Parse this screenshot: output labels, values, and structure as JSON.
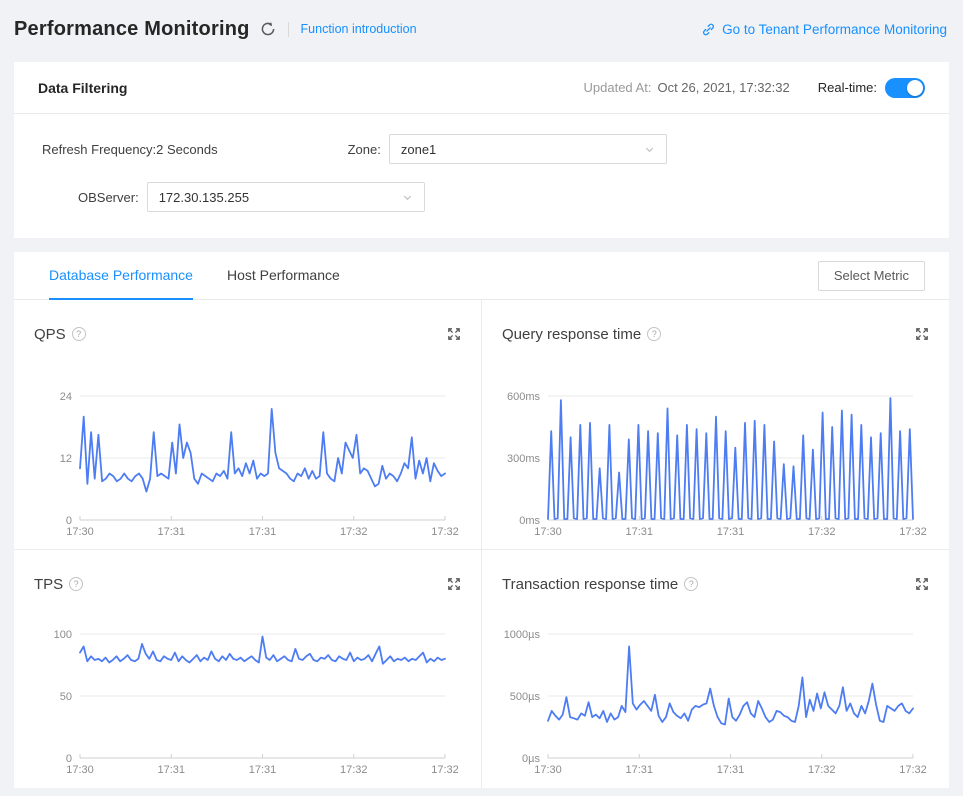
{
  "header": {
    "title": "Performance Monitoring",
    "function_intro": "Function introduction",
    "tenant_link": "Go to Tenant Performance Monitoring"
  },
  "filter_card": {
    "title": "Data Filtering",
    "updated_label": "Updated At:",
    "updated_value": "Oct 26, 2021, 17:32:32",
    "realtime_label": "Real-time:",
    "realtime_on": true,
    "refresh_label": "Refresh Frequency:",
    "refresh_value": "2 Seconds",
    "zone_label": "Zone:",
    "zone_value": "zone1",
    "observer_label": "OBServer:",
    "observer_value": "172.30.135.255"
  },
  "tabs": {
    "database": "Database Performance",
    "host": "Host Performance",
    "select_metric": "Select Metric"
  },
  "icons": {
    "help": "?"
  },
  "colors": {
    "accent": "#1890ff",
    "line": "#4d7cf3",
    "grid": "#e8e8e8",
    "axis": "#cfcfcf",
    "tick_text": "#8c8c8c"
  },
  "chart_data": [
    {
      "type": "line",
      "title": "QPS",
      "ylim": [
        0,
        24
      ],
      "yticks": [
        0,
        12,
        24
      ],
      "ytick_labels": [
        "0",
        "12",
        "24"
      ],
      "xticks": [
        "17:30",
        "17:31",
        "17:31",
        "17:32",
        "17:32"
      ],
      "grid": true,
      "legend": "none",
      "values": [
        10,
        20,
        7,
        17,
        8,
        16.5,
        7.5,
        8,
        9,
        8.5,
        7.5,
        8,
        9,
        8,
        7.5,
        8.5,
        9,
        8,
        5.5,
        8,
        17,
        8.5,
        9,
        8.5,
        8,
        15,
        9,
        18.5,
        12,
        15,
        13,
        8,
        7,
        9,
        8.5,
        8,
        7.5,
        9,
        8.5,
        9.5,
        8,
        17,
        9,
        10,
        8.5,
        11,
        9,
        11.5,
        8,
        9,
        8.5,
        9,
        21.5,
        13,
        10,
        9.5,
        9,
        8,
        7.5,
        9,
        8.5,
        10,
        8,
        9.5,
        8,
        8.5,
        17,
        9,
        8,
        7.5,
        12,
        9,
        15,
        13.5,
        12,
        16.5,
        9,
        10,
        9.5,
        8,
        6.5,
        7,
        10.5,
        8,
        9,
        8.5,
        7.5,
        9,
        11,
        10,
        16,
        8,
        11.5,
        9,
        12,
        7.5,
        11,
        9.5,
        8.5,
        9
      ]
    },
    {
      "type": "line",
      "title": "Query response time",
      "ylim": [
        0,
        600
      ],
      "yticks": [
        0,
        300,
        600
      ],
      "ytick_labels": [
        "0ms",
        "300ms",
        "600ms"
      ],
      "xticks": [
        "17:30",
        "17:31",
        "17:31",
        "17:32",
        "17:32"
      ],
      "grid": true,
      "legend": "none",
      "values": [
        5,
        430,
        5,
        8,
        580,
        5,
        5,
        400,
        8,
        5,
        460,
        5,
        8,
        470,
        5,
        5,
        250,
        8,
        5,
        460,
        5,
        8,
        230,
        5,
        5,
        390,
        8,
        5,
        460,
        5,
        8,
        430,
        5,
        5,
        420,
        8,
        5,
        540,
        5,
        8,
        410,
        5,
        5,
        460,
        8,
        5,
        440,
        5,
        8,
        420,
        5,
        5,
        500,
        8,
        5,
        430,
        5,
        8,
        350,
        5,
        5,
        470,
        8,
        5,
        480,
        5,
        8,
        460,
        5,
        5,
        380,
        8,
        5,
        270,
        5,
        8,
        260,
        5,
        5,
        410,
        8,
        5,
        340,
        5,
        8,
        520,
        5,
        5,
        450,
        8,
        5,
        530,
        5,
        8,
        510,
        5,
        5,
        460,
        8,
        5,
        400,
        5,
        8,
        420,
        5,
        5,
        590,
        8,
        5,
        430,
        5,
        8,
        440,
        5
      ]
    },
    {
      "type": "line",
      "title": "TPS",
      "ylim": [
        0,
        100
      ],
      "yticks": [
        0,
        50,
        100
      ],
      "ytick_labels": [
        "0",
        "50",
        "100"
      ],
      "xticks": [
        "17:30",
        "17:31",
        "17:31",
        "17:32",
        "17:32"
      ],
      "grid": true,
      "legend": "none",
      "values": [
        85,
        90,
        78,
        82,
        79,
        80,
        78,
        81,
        77,
        79,
        82,
        78,
        80,
        83,
        79,
        78,
        80,
        92,
        84,
        80,
        86,
        79,
        78,
        82,
        80,
        79,
        85,
        78,
        82,
        79,
        77,
        80,
        83,
        78,
        81,
        79,
        86,
        80,
        78,
        82,
        79,
        84,
        80,
        79,
        81,
        78,
        80,
        82,
        79,
        77,
        98,
        81,
        79,
        83,
        78,
        80,
        82,
        79,
        78,
        88,
        80,
        79,
        82,
        84,
        79,
        78,
        81,
        80,
        83,
        79,
        78,
        82,
        80,
        79,
        85,
        78,
        81,
        79,
        80,
        83,
        78,
        84,
        90,
        76,
        79,
        82,
        78,
        80,
        79,
        81,
        78,
        80,
        79,
        82,
        85,
        77,
        80,
        78,
        81,
        79,
        80
      ]
    },
    {
      "type": "line",
      "title": "Transaction response time",
      "ylim": [
        0,
        1000
      ],
      "yticks": [
        0,
        500,
        1000
      ],
      "ytick_labels": [
        "0µs",
        "500µs",
        "1000µs"
      ],
      "xticks": [
        "17:30",
        "17:31",
        "17:31",
        "17:32",
        "17:32"
      ],
      "grid": true,
      "legend": "none",
      "values": [
        300,
        380,
        340,
        310,
        350,
        490,
        330,
        320,
        310,
        360,
        340,
        450,
        330,
        350,
        320,
        380,
        290,
        360,
        310,
        330,
        420,
        370,
        900,
        440,
        390,
        430,
        460,
        420,
        380,
        510,
        340,
        290,
        330,
        440,
        370,
        340,
        320,
        360,
        300,
        390,
        420,
        410,
        430,
        440,
        560,
        420,
        330,
        280,
        270,
        480,
        330,
        300,
        350,
        420,
        450,
        360,
        330,
        460,
        400,
        330,
        290,
        310,
        380,
        370,
        340,
        330,
        300,
        290,
        420,
        650,
        330,
        470,
        380,
        520,
        400,
        530,
        420,
        390,
        360,
        420,
        570,
        380,
        440,
        360,
        330,
        420,
        360,
        460,
        600,
        430,
        300,
        290,
        420,
        400,
        380,
        420,
        440,
        380,
        360,
        400
      ]
    }
  ]
}
